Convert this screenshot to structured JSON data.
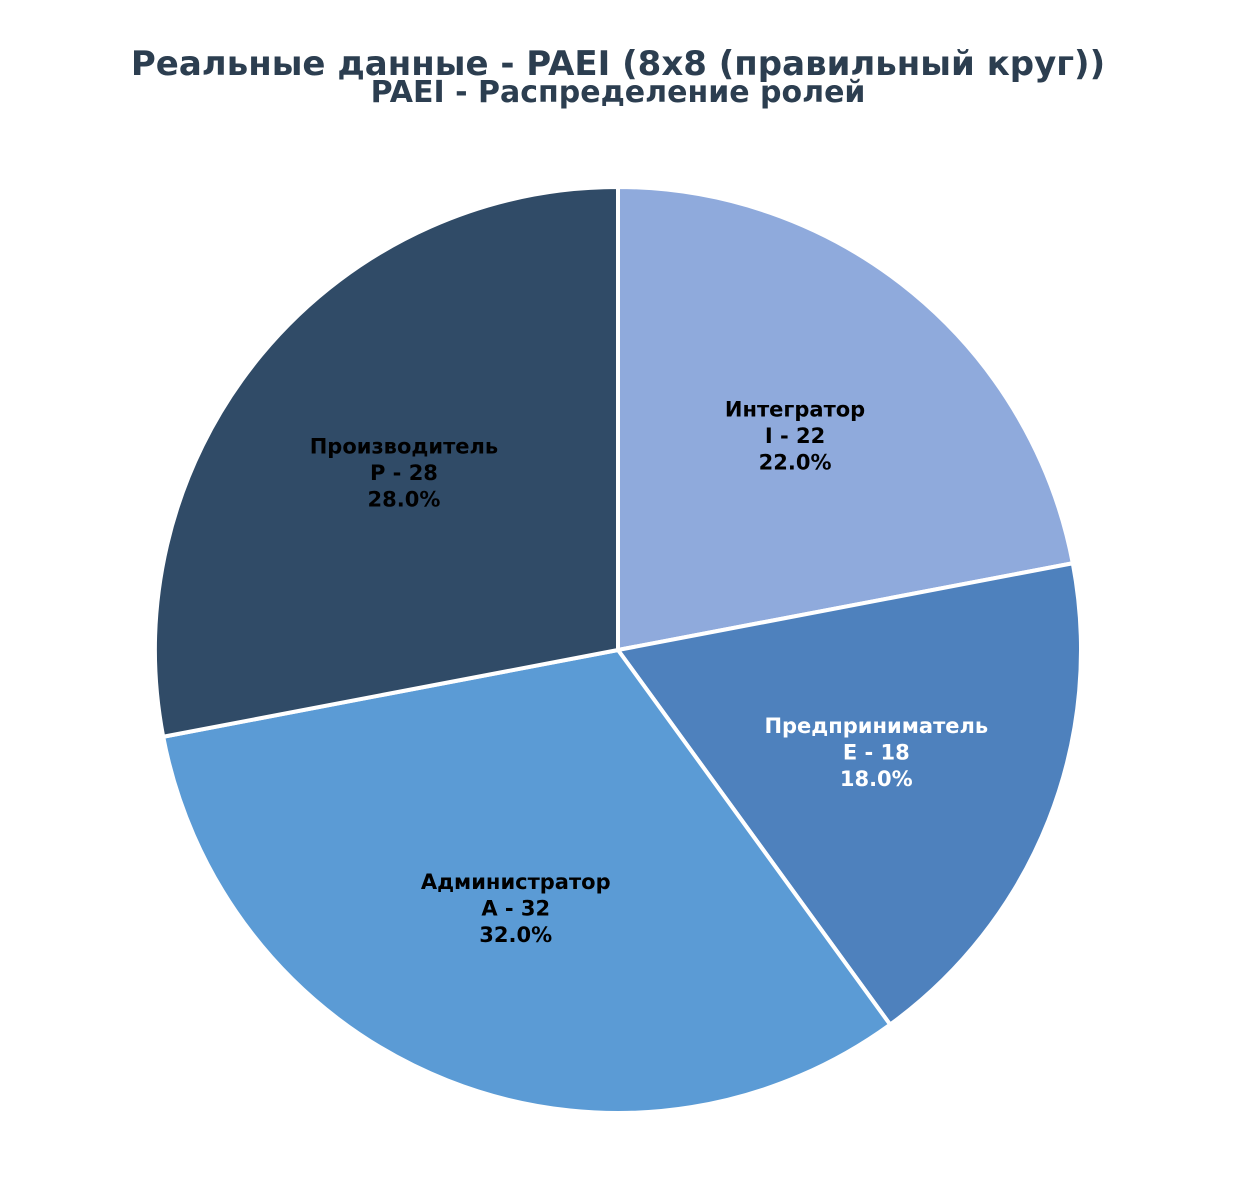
{
  "chart_data": {
    "type": "pie",
    "title": "Реальные данные - PAEI (8x8 (правильный круг))",
    "subtitle": "PAEI - Распределение ролей",
    "slices": [
      {
        "name": "Интегратор",
        "short": "I - 22",
        "value": 22,
        "percent": "22.0%",
        "color": "#8faadc",
        "text_color": "#000000"
      },
      {
        "name": "Предприниматель",
        "short": "E - 18",
        "value": 18,
        "percent": "18.0%",
        "color": "#4e81bd",
        "text_color": "#ffffff"
      },
      {
        "name": "Администратор",
        "short": "A - 32",
        "value": 32,
        "percent": "32.0%",
        "color": "#5b9bd5",
        "text_color": "#000000"
      },
      {
        "name": "Производитель",
        "short": "P - 28",
        "value": 28,
        "percent": "28.0%",
        "color": "#304b67",
        "text_color": "#000000"
      }
    ],
    "start": "12 o'clock",
    "direction": "clockwise",
    "edge_color": "#ffffff"
  }
}
